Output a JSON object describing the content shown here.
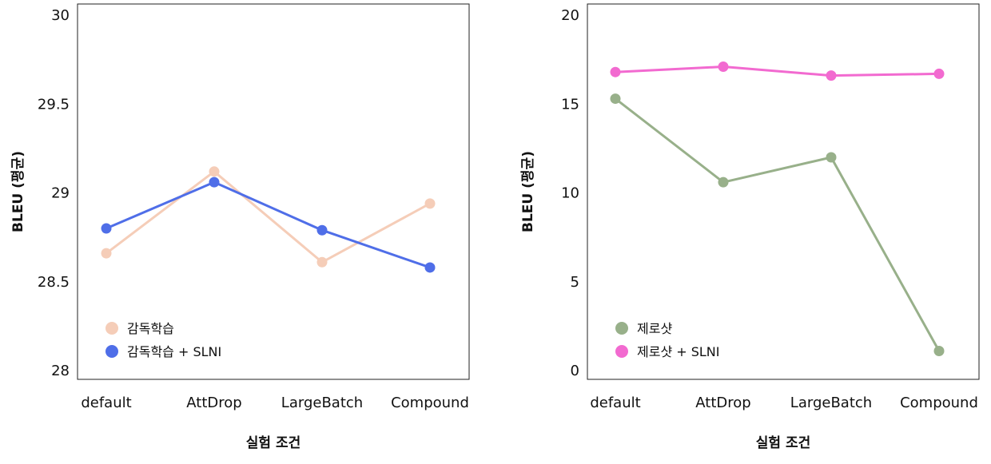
{
  "chart_data": [
    {
      "type": "line",
      "title": "",
      "xlabel": "실험 조건",
      "ylabel": "BLEU (평균)",
      "categories": [
        "default",
        "AttDrop",
        "LargeBatch",
        "Compound"
      ],
      "ylim": [
        28,
        30
      ],
      "yticks": [
        "28",
        "28.5",
        "29",
        "29.5",
        "30"
      ],
      "grid": false,
      "legend_position": "bottom-left",
      "series": [
        {
          "name": "감독학습",
          "color": "#f5cdb8",
          "values": [
            28.66,
            29.12,
            28.61,
            28.94
          ]
        },
        {
          "name": "감독학습 + SLNI",
          "color": "#4f6ee8",
          "values": [
            28.8,
            29.06,
            28.79,
            28.58
          ]
        }
      ]
    },
    {
      "type": "line",
      "title": "",
      "xlabel": "실험 조건",
      "ylabel": "BLEU (평균)",
      "categories": [
        "default",
        "AttDrop",
        "LargeBatch",
        "Compound"
      ],
      "ylim": [
        0,
        20
      ],
      "yticks": [
        "0",
        "5",
        "10",
        "15",
        "20"
      ],
      "grid": false,
      "legend_position": "bottom-left",
      "series": [
        {
          "name": "제로샷",
          "color": "#98b08a",
          "values": [
            15.3,
            10.6,
            12.0,
            1.1
          ]
        },
        {
          "name": "제로샷 + SLNI",
          "color": "#f26ad0",
          "values": [
            16.8,
            17.1,
            16.6,
            16.7
          ]
        }
      ]
    }
  ]
}
